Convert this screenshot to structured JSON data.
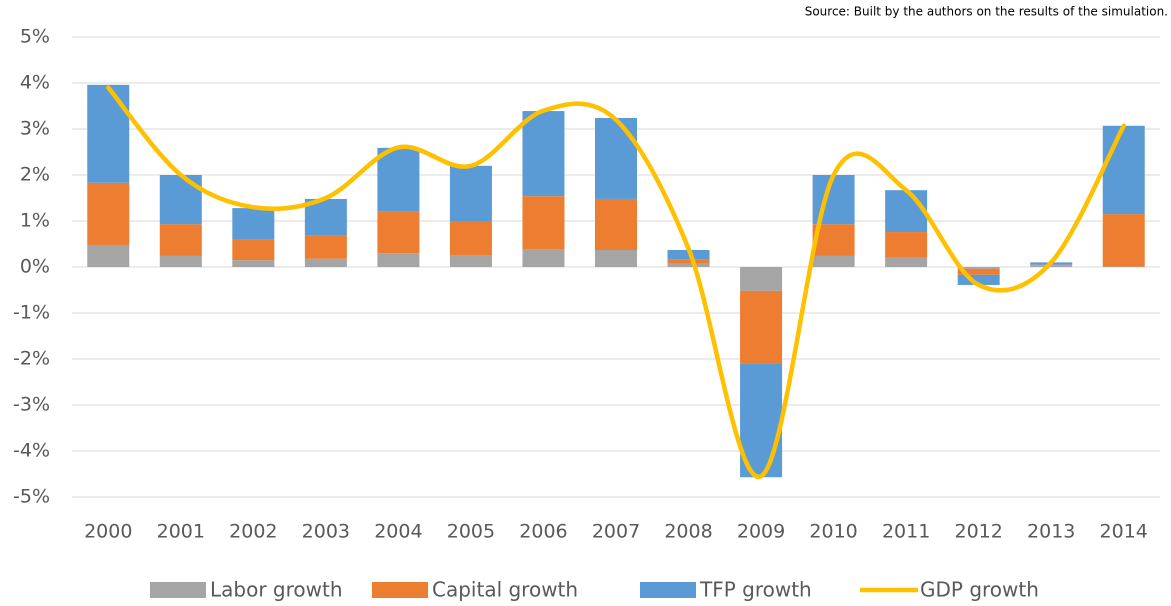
{
  "chart_data": {
    "type": "bar",
    "stacked": true,
    "annotation": "Source: Built by the authors on the results of the simulation.",
    "categories": [
      "2000",
      "2001",
      "2002",
      "2003",
      "2004",
      "2005",
      "2006",
      "2007",
      "2008",
      "2009",
      "2010",
      "2011",
      "2012",
      "2013",
      "2014"
    ],
    "series": [
      {
        "name": "Labor growth",
        "color": "#a5a5a5",
        "values": [
          0.48,
          0.24,
          0.15,
          0.18,
          0.3,
          0.26,
          0.39,
          0.37,
          0.07,
          -0.52,
          0.24,
          0.2,
          -0.04,
          0.04,
          0.01
        ]
      },
      {
        "name": "Capital growth",
        "color": "#ed7d31",
        "values": [
          1.35,
          0.69,
          0.45,
          0.5,
          0.9,
          0.74,
          1.15,
          1.11,
          0.1,
          -1.58,
          0.69,
          0.56,
          -0.13,
          0.01,
          1.14
        ]
      },
      {
        "name": "TFP growth",
        "color": "#5b9bd5",
        "values": [
          2.13,
          1.07,
          0.68,
          0.8,
          1.39,
          1.2,
          1.85,
          1.76,
          0.2,
          -2.47,
          1.07,
          0.91,
          -0.22,
          0.05,
          1.92
        ]
      },
      {
        "name": "GDP growth",
        "color": "#ffc000",
        "type": "line",
        "smooth": true,
        "values": [
          3.9,
          2.0,
          1.3,
          1.5,
          2.6,
          2.2,
          3.4,
          3.2,
          0.4,
          -4.55,
          2.0,
          1.67,
          -0.39,
          0.1,
          3.07
        ]
      }
    ],
    "ylim": [
      -5,
      5
    ],
    "yticks": [
      {
        "value": -5,
        "label": "-5%"
      },
      {
        "value": -4,
        "label": "-4%"
      },
      {
        "value": -3,
        "label": "-3%"
      },
      {
        "value": -2,
        "label": "-2%"
      },
      {
        "value": -1,
        "label": "-1%"
      },
      {
        "value": 0,
        "label": "0%"
      },
      {
        "value": 1,
        "label": "1%"
      },
      {
        "value": 2,
        "label": "2%"
      },
      {
        "value": 3,
        "label": "3%"
      },
      {
        "value": 4,
        "label": "4%"
      },
      {
        "value": 5,
        "label": "5%"
      }
    ],
    "grid": true,
    "legend": "bottom"
  }
}
